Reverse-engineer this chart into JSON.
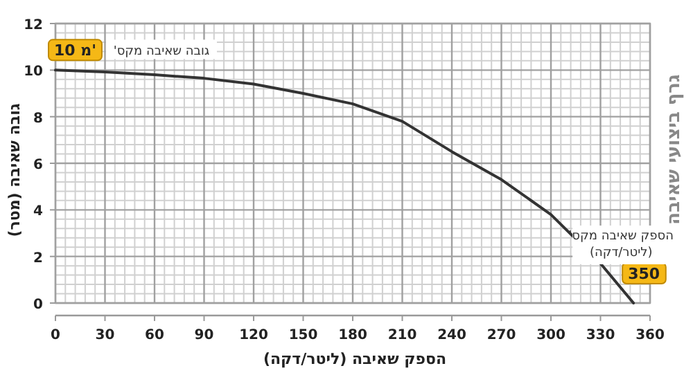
{
  "chart_data": {
    "type": "line",
    "title": "גרף ביצועי שאיבה",
    "xlabel": "הספק שאיבה (ליטר/דקה)",
    "ylabel": "גובה שאיבה (מטר)",
    "x": [
      0,
      30,
      60,
      90,
      120,
      150,
      180,
      210,
      240,
      270,
      300,
      330,
      350
    ],
    "series": [
      {
        "color": "#333333",
        "values": [
          10,
          9.92,
          9.8,
          9.65,
          9.4,
          9.0,
          8.55,
          7.8,
          6.5,
          5.3,
          3.8,
          1.7,
          0
        ]
      }
    ],
    "xlim": [
      0,
      360
    ],
    "ylim": [
      0,
      12
    ],
    "xticks": [
      0,
      30,
      60,
      90,
      120,
      150,
      180,
      210,
      240,
      270,
      300,
      330,
      360
    ],
    "yticks": [
      0,
      2,
      4,
      6,
      8,
      10,
      12
    ],
    "grid": true,
    "marker": "none",
    "line_style": "solid",
    "annotations": [
      "גובה שאיבה מקס'",
      {
        "text": "10 מ'",
        "x": 0,
        "y": 10
      },
      "הספק שאיבה מקס' (ליטר/דקה)",
      {
        "text": "350",
        "x": 350,
        "y": 0
      }
    ]
  }
}
